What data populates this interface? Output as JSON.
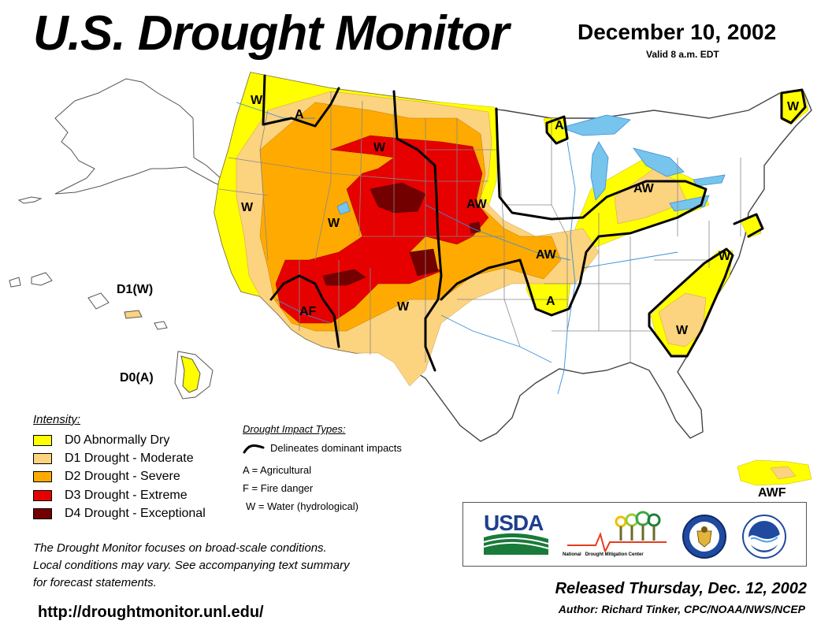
{
  "header": {
    "title": "U.S. Drought Monitor",
    "date": "December 10, 2002",
    "valid": "Valid 8 a.m. EDT"
  },
  "colors": {
    "d0": "#ffff00",
    "d1": "#fcd37f",
    "d2": "#ffaa00",
    "d3": "#e60000",
    "d4": "#730000",
    "water": "#77c4ec",
    "boundary": "#888888",
    "river": "#3a8fd9",
    "impact_line": "#000000"
  },
  "legend": {
    "title": "Intensity:",
    "items": [
      {
        "code": "d0",
        "label": "D0 Abnormally Dry"
      },
      {
        "code": "d1",
        "label": "D1 Drought - Moderate"
      },
      {
        "code": "d2",
        "label": "D2 Drought - Severe"
      },
      {
        "code": "d3",
        "label": "D3 Drought - Extreme"
      },
      {
        "code": "d4",
        "label": "D4 Drought - Exceptional"
      }
    ]
  },
  "impacts": {
    "title": "Drought Impact Types:",
    "line_label": "Delineates dominant impacts",
    "types": [
      "A = Agricultural",
      "F = Fire danger",
      "W = Water (hydrological)"
    ]
  },
  "map_labels": {
    "wa": "W",
    "nid": "A",
    "mt_w": "W",
    "sd": "AW",
    "or": "W",
    "ut": "W",
    "az": "AF",
    "nm": "W",
    "ks": "AW",
    "ok": "A",
    "mn": "A",
    "mi": "AW",
    "me": "W",
    "va": "W",
    "sc": "W",
    "hi_n": "D1(W)",
    "hi_s": "D0(A)",
    "pr": "AWF"
  },
  "disclaimer": {
    "line1": "The Drought Monitor focuses on broad-scale conditions.",
    "line2": "Local conditions may vary. See accompanying text summary",
    "line3": "for forecast statements."
  },
  "url": "http://droughtmonitor.unl.edu/",
  "logos": {
    "usda": "USDA",
    "ndmc_prefix": "National",
    "ndmc_name": "Drought Mitigation Center",
    "icons": [
      "usda-logo-icon",
      "ndmc-logo-icon",
      "commerce-seal-icon",
      "noaa-logo-icon"
    ]
  },
  "footer": {
    "released": "Released Thursday, Dec. 12, 2002",
    "author": "Author: Richard Tinker, CPC/NOAA/NWS/NCEP"
  }
}
